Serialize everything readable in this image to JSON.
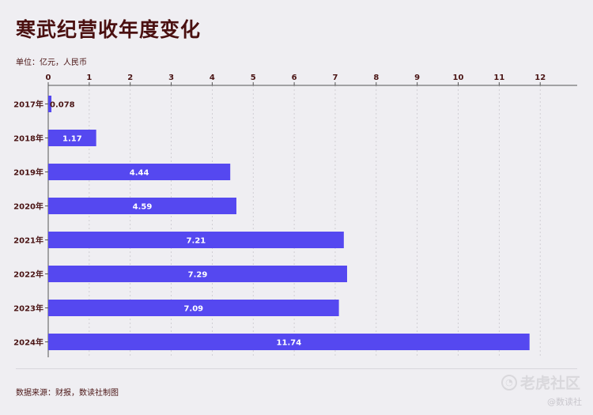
{
  "title": "寒武纪营收年度变化",
  "unit": "单位：亿元，人民币",
  "source": "数据来源：财报，数读社制图",
  "watermark": {
    "main": "老虎社区",
    "sub": "@数读社",
    "logo_icon": "tiger-logo-icon"
  },
  "colors": {
    "bar": "#5548f0",
    "text": "#4a1414",
    "grid": "#c8c6cc",
    "axis": "#555555"
  },
  "chart_data": {
    "type": "bar",
    "orientation": "horizontal",
    "categories": [
      "2017年",
      "2018年",
      "2019年",
      "2020年",
      "2021年",
      "2022年",
      "2023年",
      "2024年"
    ],
    "values": [
      0.078,
      1.17,
      4.44,
      4.59,
      7.21,
      7.29,
      7.09,
      11.74
    ],
    "value_labels": [
      "0.078",
      "1.17",
      "4.44",
      "4.59",
      "7.21",
      "7.29",
      "7.09",
      "11.74"
    ],
    "xlim": [
      0,
      13
    ],
    "ticks": [
      0,
      1,
      2,
      3,
      4,
      5,
      6,
      7,
      8,
      9,
      10,
      11,
      12
    ],
    "grid": true
  }
}
